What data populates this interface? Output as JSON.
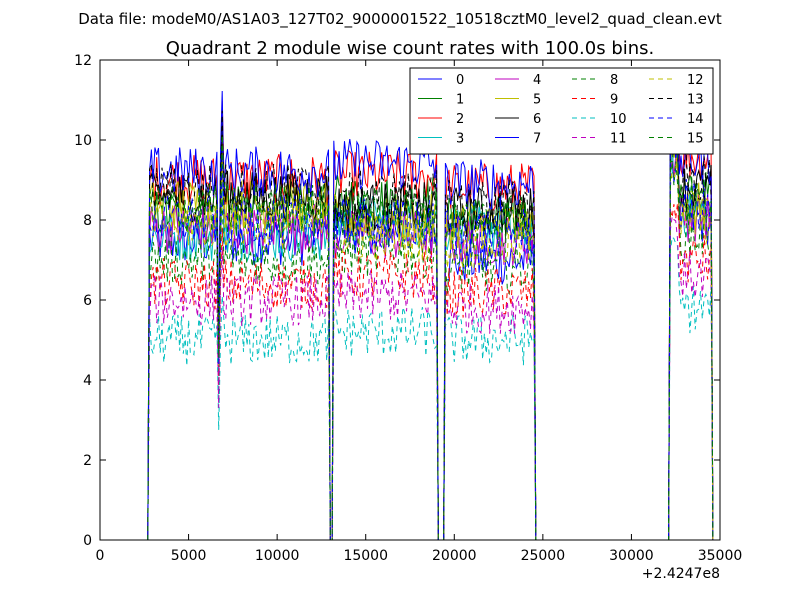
{
  "figure": {
    "suptitle": "Data file: modeM0/AS1A03_127T02_9000001522_10518cztM0_level2_quad_clean.evt"
  },
  "chart_data": {
    "type": "line",
    "title": "Quadrant 2 module wise count rates with 100.0s bins.",
    "xlabel": "",
    "ylabel": "",
    "xlim": [
      0,
      35000
    ],
    "ylim": [
      0,
      12
    ],
    "x_offset_label": "+2.4247e8",
    "x_ticks": [
      0,
      5000,
      10000,
      15000,
      20000,
      25000,
      30000,
      35000
    ],
    "x_tick_labels": [
      "0",
      "5000",
      "10000",
      "15000",
      "20000",
      "25000",
      "30000",
      "35000"
    ],
    "y_ticks": [
      0,
      2,
      4,
      6,
      8,
      10,
      12
    ],
    "y_tick_labels": [
      "0",
      "2",
      "4",
      "6",
      "8",
      "10",
      "12"
    ],
    "grid": false,
    "legend": {
      "placement": "top-right",
      "columns": 4
    },
    "bin_seconds": 100,
    "segments": [
      [
        2800,
        12900
      ],
      [
        13200,
        19000
      ],
      [
        19500,
        24500
      ],
      [
        32200,
        34500
      ]
    ],
    "gaps": [
      [
        12900,
        13200
      ],
      [
        19000,
        19500
      ],
      [
        24500,
        32200
      ],
      [
        34500,
        34600
      ]
    ],
    "series": [
      {
        "name": "0",
        "color": "#0000ff",
        "dash": false,
        "level": 7.5,
        "segment_levels": [
          7.5,
          7.8,
          7.0,
          8.0
        ]
      },
      {
        "name": "1",
        "color": "#008000",
        "dash": false,
        "level": 8.2,
        "segment_levels": [
          8.2,
          8.5,
          8.0,
          8.6
        ]
      },
      {
        "name": "2",
        "color": "#ff0000",
        "dash": false,
        "level": 9.0,
        "segment_levels": [
          9.0,
          9.1,
          8.8,
          9.6
        ]
      },
      {
        "name": "3",
        "color": "#00bfbf",
        "dash": false,
        "level": 7.6,
        "segment_levels": [
          7.6,
          8.0,
          7.8,
          8.2
        ]
      },
      {
        "name": "4",
        "color": "#bf00bf",
        "dash": false,
        "level": 7.8,
        "segment_levels": [
          7.8,
          7.6,
          7.5,
          8.1
        ]
      },
      {
        "name": "5",
        "color": "#bfbf00",
        "dash": false,
        "level": 8.4,
        "segment_levels": [
          8.4,
          8.0,
          7.9,
          8.3
        ]
      },
      {
        "name": "6",
        "color": "#000000",
        "dash": false,
        "level": 8.6,
        "segment_levels": [
          8.6,
          8.3,
          8.2,
          8.8
        ]
      },
      {
        "name": "7",
        "color": "#0000ff",
        "dash": false,
        "level": 9.2,
        "segment_levels": [
          9.2,
          9.4,
          8.9,
          9.5
        ]
      },
      {
        "name": "8",
        "color": "#008000",
        "dash": true,
        "level": 7.0,
        "segment_levels": [
          7.0,
          7.2,
          6.8,
          7.6
        ]
      },
      {
        "name": "9",
        "color": "#ff0000",
        "dash": true,
        "level": 6.4,
        "segment_levels": [
          6.4,
          6.6,
          6.2,
          7.0
        ]
      },
      {
        "name": "10",
        "color": "#00bfbf",
        "dash": true,
        "level": 5.0,
        "segment_levels": [
          5.0,
          5.2,
          5.0,
          5.8
        ]
      },
      {
        "name": "11",
        "color": "#bf00bf",
        "dash": true,
        "level": 6.0,
        "segment_levels": [
          6.0,
          6.1,
          5.8,
          6.6
        ]
      },
      {
        "name": "12",
        "color": "#bfbf00",
        "dash": true,
        "level": 7.9,
        "segment_levels": [
          7.9,
          7.6,
          7.4,
          8.0
        ]
      },
      {
        "name": "13",
        "color": "#000000",
        "dash": true,
        "level": 8.8,
        "segment_levels": [
          8.8,
          8.6,
          8.4,
          9.0
        ]
      },
      {
        "name": "14",
        "color": "#0000ff",
        "dash": true,
        "level": 8.0,
        "segment_levels": [
          8.0,
          7.9,
          7.7,
          8.4
        ]
      },
      {
        "name": "15",
        "color": "#008000",
        "dash": true,
        "level": 8.3,
        "segment_levels": [
          8.3,
          8.2,
          8.0,
          8.5
        ]
      }
    ]
  }
}
